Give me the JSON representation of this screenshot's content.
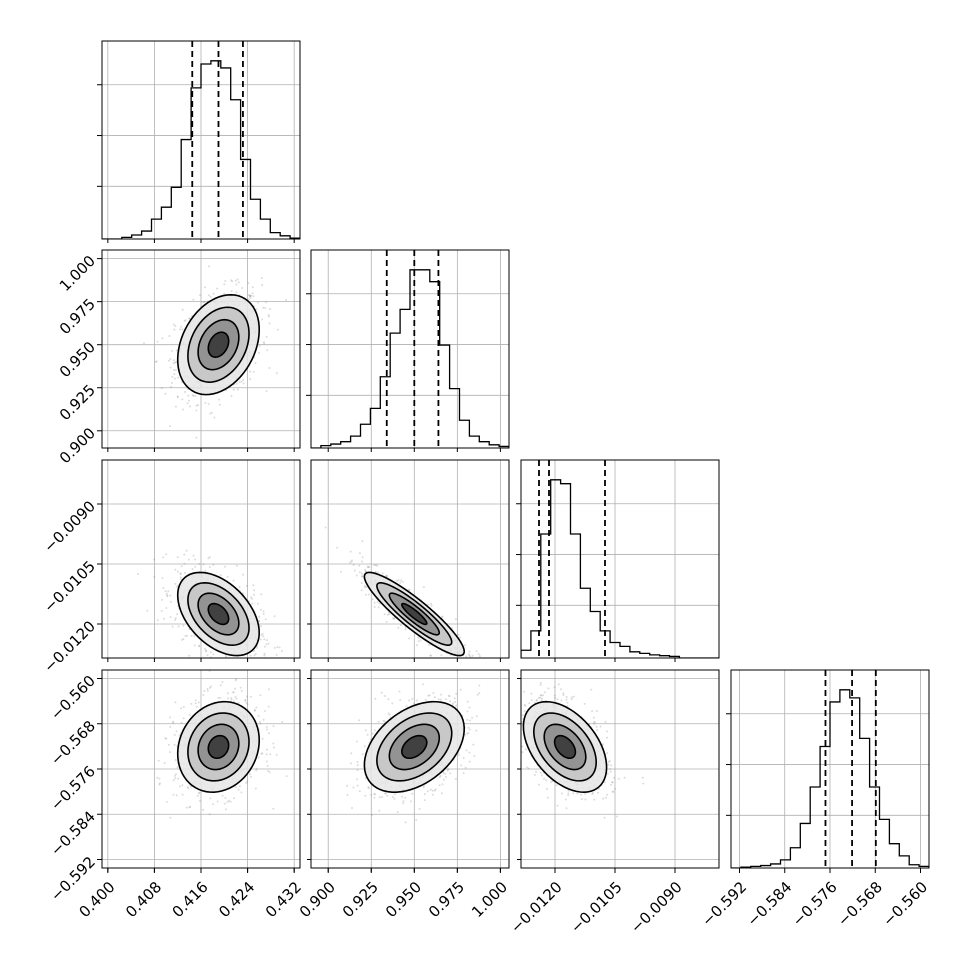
{
  "chart_data": {
    "type": "corner",
    "parameters": [
      {
        "ticks": [
          0.4,
          0.408,
          0.416,
          0.424,
          0.432
        ],
        "tick_labels": [
          "0.400",
          "0.408",
          "0.416",
          "0.424",
          "0.432"
        ],
        "range": [
          0.399,
          0.433
        ],
        "quantiles": [
          0.4145,
          0.419,
          0.4232
        ],
        "histogram": {
          "edges_start": 0.399,
          "bin_width": 0.0017,
          "counts": [
            0,
            0,
            2,
            5,
            10,
            25,
            40,
            65,
            125,
            190,
            220,
            224,
            215,
            175,
            100,
            50,
            25,
            8,
            4,
            1
          ]
        }
      },
      {
        "ticks": [
          0.9,
          0.925,
          0.95,
          0.975,
          1.0
        ],
        "tick_labels": [
          "0.900",
          "0.925",
          "0.950",
          "0.975",
          "1.000"
        ],
        "range": [
          0.89,
          1.005
        ],
        "quantiles": [
          0.934,
          0.95,
          0.964
        ],
        "histogram": {
          "edges_start": 0.89,
          "bin_width": 0.00575,
          "counts": [
            0,
            3,
            5,
            8,
            15,
            30,
            50,
            90,
            145,
            175,
            225,
            225,
            210,
            130,
            75,
            35,
            15,
            8,
            4,
            2
          ]
        }
      },
      {
        "ticks": [
          -0.012,
          -0.0105,
          -0.009
        ],
        "tick_labels": [
          "−0.0120",
          "−0.0105",
          "−0.0090"
        ],
        "ticks_2d": [
          -0.012,
          -0.0105,
          -0.009
        ],
        "tick_labels_2d": [
          "−0.0120",
          "−0.0105",
          "−0.0090"
        ],
        "range": [
          -0.01285,
          -0.0079
        ],
        "quantiles": [
          -0.0124,
          -0.01215,
          -0.01075
        ],
        "histogram": {
          "edges_start": -0.01285,
          "bin_width": 0.0002475,
          "counts": [
            10,
            35,
            160,
            230,
            225,
            160,
            90,
            60,
            35,
            20,
            15,
            8,
            6,
            4,
            3,
            2,
            0,
            0,
            0,
            0
          ]
        }
      },
      {
        "ticks": [
          -0.592,
          -0.584,
          -0.576,
          -0.568,
          -0.56
        ],
        "tick_labels": [
          "−0.592",
          "−0.584",
          "−0.576",
          "−0.568",
          "−0.560"
        ],
        "range": [
          -0.5935,
          -0.5585
        ],
        "quantiles": [
          -0.5768,
          -0.5721,
          -0.5679
        ],
        "histogram": {
          "edges_start": -0.5935,
          "bin_width": 0.00175,
          "counts": [
            0,
            1,
            2,
            3,
            5,
            10,
            25,
            55,
            100,
            150,
            205,
            220,
            210,
            160,
            100,
            60,
            30,
            15,
            4,
            2
          ]
        }
      }
    ],
    "pairs": [
      {
        "row": 1,
        "col": 0,
        "mean": [
          0.419,
          0.95
        ],
        "std": [
          0.0035,
          0.0145
        ],
        "corr": 0.3
      },
      {
        "row": 2,
        "col": 0,
        "mean": [
          0.419,
          -0.01175
        ],
        "std": [
          0.0035,
          0.00052
        ],
        "corr": -0.45
      },
      {
        "row": 2,
        "col": 1,
        "mean": [
          0.95,
          -0.01175
        ],
        "std": [
          0.0145,
          0.00052
        ],
        "corr": -0.9
      },
      {
        "row": 3,
        "col": 0,
        "mean": [
          0.419,
          -0.5721
        ],
        "std": [
          0.0035,
          0.004
        ],
        "corr": 0.15
      },
      {
        "row": 3,
        "col": 1,
        "mean": [
          0.95,
          -0.5721
        ],
        "std": [
          0.0145,
          0.004
        ],
        "corr": 0.4
      },
      {
        "row": 3,
        "col": 2,
        "mean": [
          -0.01175,
          -0.5721
        ],
        "std": [
          0.00052,
          0.004
        ],
        "corr": -0.45
      }
    ],
    "contour_levels_sigma": [
      0.5,
      1.0,
      1.5,
      2.0
    ],
    "quantile_line_style": "dashed",
    "grid": true,
    "colors": {
      "line": "#000000",
      "points": "#808080",
      "grid": "#b0b0b0",
      "background": "#ffffff"
    }
  }
}
